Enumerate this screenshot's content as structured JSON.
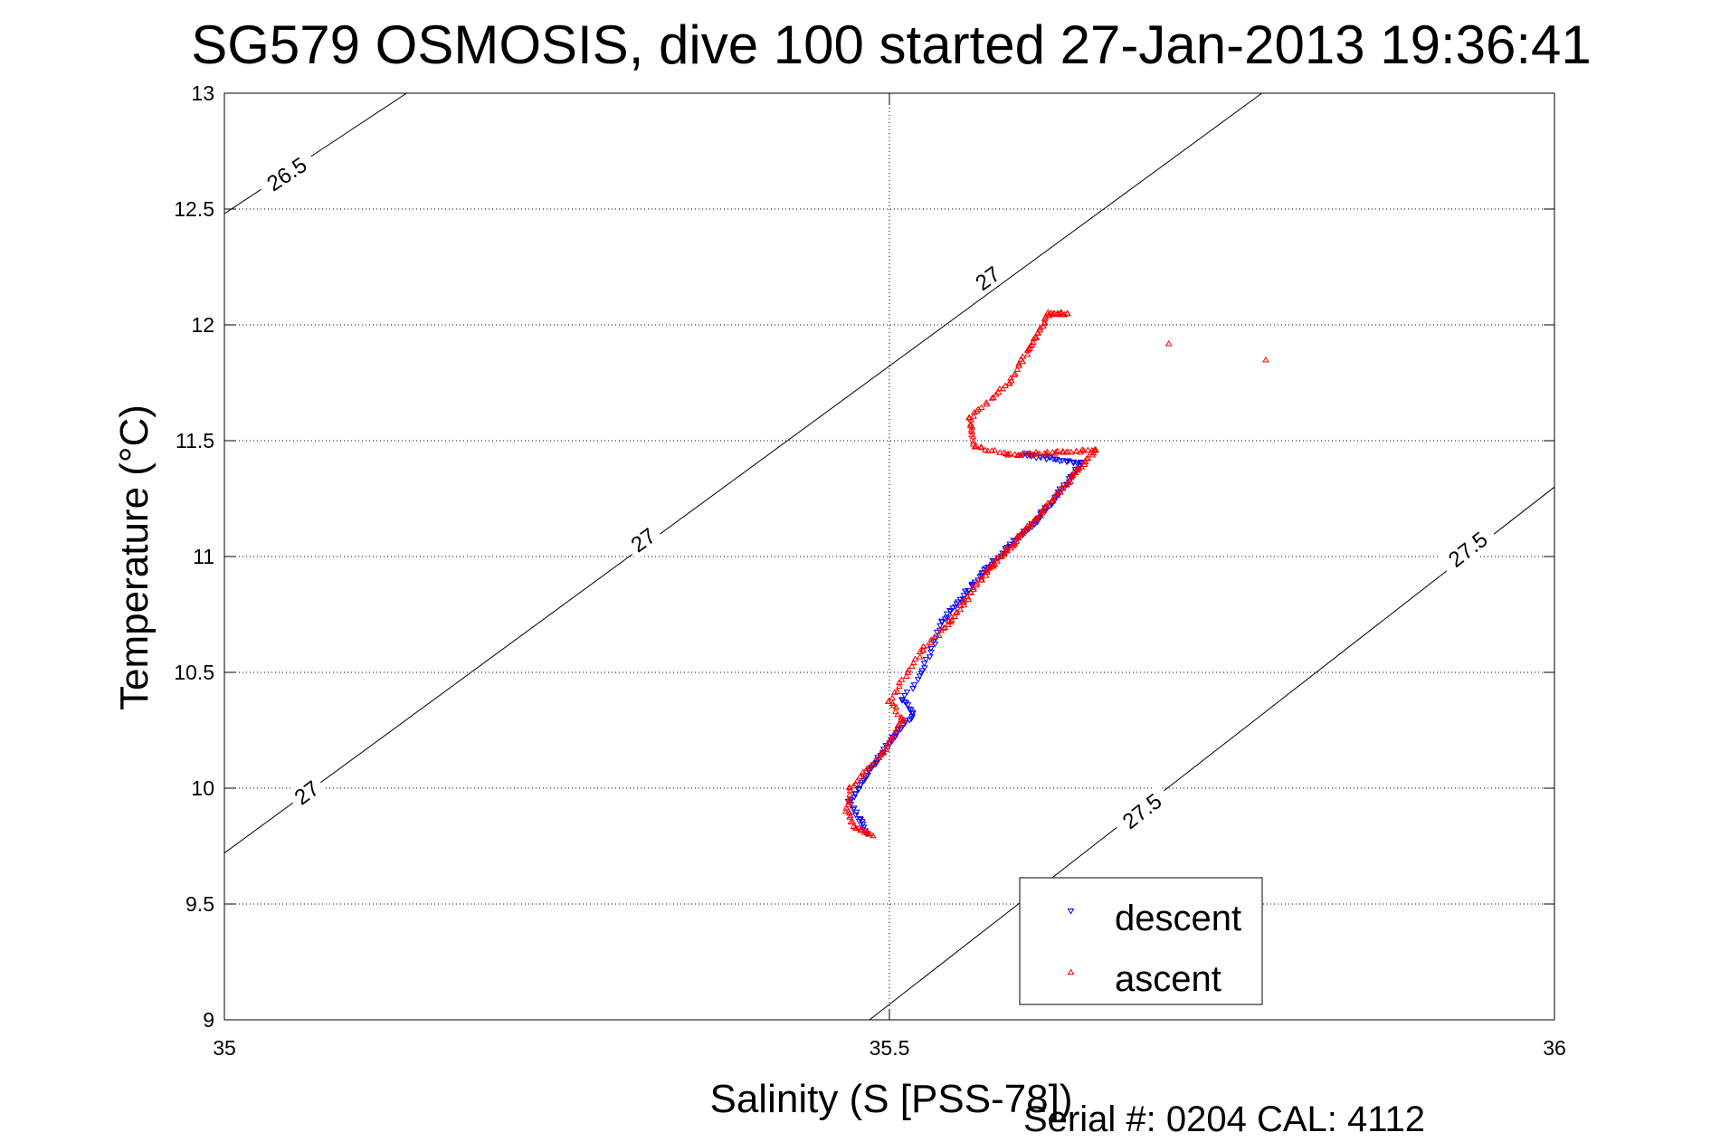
{
  "chart_data": {
    "type": "scatter",
    "title": "SG579 OSMOSIS, dive 100 started 27-Jan-2013 19:36:41",
    "xlabel": "Salinity (S [PSS-78])",
    "ylabel": "Temperature (°C)",
    "xlim": [
      35,
      36
    ],
    "ylim": [
      9,
      13
    ],
    "x_ticks": [
      "35",
      "35.5",
      "36"
    ],
    "y_ticks": [
      "9",
      "9.5",
      "10",
      "10.5",
      "11",
      "11.5",
      "12",
      "12.5",
      "13"
    ],
    "grid": true,
    "legend_position": "bottom-right",
    "footer": "Serial #: 0204  CAL: 4112",
    "contours": [
      {
        "label": "26.5",
        "points": [
          [
            35.0,
            12.48
          ],
          [
            35.137,
            13.0
          ]
        ],
        "label_positions": [
          [
            35.047,
            12.65
          ]
        ]
      },
      {
        "label": "27",
        "points": [
          [
            35.0,
            9.72
          ],
          [
            35.78,
            13.0
          ]
        ],
        "label_positions": [
          [
            35.062,
            9.98
          ],
          [
            35.315,
            11.07
          ],
          [
            35.574,
            12.2
          ]
        ]
      },
      {
        "label": "27.5",
        "points": [
          [
            35.485,
            9.0
          ],
          [
            36.0,
            11.3
          ]
        ],
        "label_positions": [
          [
            35.69,
            9.9
          ],
          [
            35.935,
            11.03
          ]
        ]
      }
    ],
    "series": [
      {
        "name": "descent",
        "color": "#0000ff",
        "marker": "triangle-down",
        "segments": [
          {
            "x0": 35.483,
            "y0": 9.8,
            "x1": 35.478,
            "y1": 9.86,
            "n": 8
          },
          {
            "x0": 35.478,
            "y0": 9.86,
            "x1": 35.47,
            "y1": 9.94,
            "n": 8
          },
          {
            "x0": 35.47,
            "y0": 9.94,
            "x1": 35.485,
            "y1": 10.07,
            "n": 14
          },
          {
            "x0": 35.485,
            "y0": 10.07,
            "x1": 35.503,
            "y1": 10.22,
            "n": 18
          },
          {
            "x0": 35.503,
            "y0": 10.22,
            "x1": 35.518,
            "y1": 10.32,
            "n": 14
          },
          {
            "x0": 35.518,
            "y0": 10.32,
            "x1": 35.51,
            "y1": 10.38,
            "n": 8
          },
          {
            "x0": 35.51,
            "y0": 10.38,
            "x1": 35.525,
            "y1": 10.5,
            "n": 8
          },
          {
            "x0": 35.525,
            "y0": 10.5,
            "x1": 35.54,
            "y1": 10.72,
            "n": 14
          },
          {
            "x0": 35.54,
            "y0": 10.72,
            "x1": 35.57,
            "y1": 10.93,
            "n": 24
          },
          {
            "x0": 35.57,
            "y0": 10.93,
            "x1": 35.61,
            "y1": 11.15,
            "n": 34
          },
          {
            "x0": 35.61,
            "y0": 11.15,
            "x1": 35.645,
            "y1": 11.4,
            "n": 34
          },
          {
            "x0": 35.645,
            "y0": 11.4,
            "x1": 35.6,
            "y1": 11.44,
            "n": 26
          }
        ]
      },
      {
        "name": "ascent",
        "color": "#ff0000",
        "marker": "triangle-up",
        "segments": [
          {
            "x0": 35.487,
            "y0": 9.8,
            "x1": 35.475,
            "y1": 9.83,
            "n": 12
          },
          {
            "x0": 35.475,
            "y0": 9.83,
            "x1": 35.468,
            "y1": 9.9,
            "n": 8
          },
          {
            "x0": 35.468,
            "y0": 9.9,
            "x1": 35.47,
            "y1": 10.0,
            "n": 8
          },
          {
            "x0": 35.47,
            "y0": 10.0,
            "x1": 35.495,
            "y1": 10.15,
            "n": 14
          },
          {
            "x0": 35.495,
            "y0": 10.15,
            "x1": 35.51,
            "y1": 10.3,
            "n": 14
          },
          {
            "x0": 35.51,
            "y0": 10.3,
            "x1": 35.5,
            "y1": 10.38,
            "n": 8
          },
          {
            "x0": 35.5,
            "y0": 10.38,
            "x1": 35.525,
            "y1": 10.6,
            "n": 16
          },
          {
            "x0": 35.525,
            "y0": 10.6,
            "x1": 35.545,
            "y1": 10.72,
            "n": 12
          },
          {
            "x0": 35.545,
            "y0": 10.72,
            "x1": 35.575,
            "y1": 10.95,
            "n": 26
          },
          {
            "x0": 35.575,
            "y0": 10.95,
            "x1": 35.61,
            "y1": 11.16,
            "n": 36
          },
          {
            "x0": 35.61,
            "y0": 11.16,
            "x1": 35.655,
            "y1": 11.46,
            "n": 40
          },
          {
            "x0": 35.655,
            "y0": 11.46,
            "x1": 35.59,
            "y1": 11.44,
            "n": 34
          },
          {
            "x0": 35.59,
            "y0": 11.44,
            "x1": 35.563,
            "y1": 11.48,
            "n": 12
          },
          {
            "x0": 35.563,
            "y0": 11.48,
            "x1": 35.56,
            "y1": 11.6,
            "n": 12
          },
          {
            "x0": 35.56,
            "y0": 11.6,
            "x1": 35.59,
            "y1": 11.75,
            "n": 16
          },
          {
            "x0": 35.59,
            "y0": 11.75,
            "x1": 35.605,
            "y1": 11.9,
            "n": 14
          },
          {
            "x0": 35.605,
            "y0": 11.9,
            "x1": 35.62,
            "y1": 12.05,
            "n": 18
          },
          {
            "x0": 35.62,
            "y0": 12.05,
            "x1": 35.635,
            "y1": 12.05,
            "n": 16
          }
        ],
        "extra_points": [
          [
            35.71,
            11.92
          ],
          [
            35.783,
            11.85
          ]
        ]
      }
    ]
  }
}
